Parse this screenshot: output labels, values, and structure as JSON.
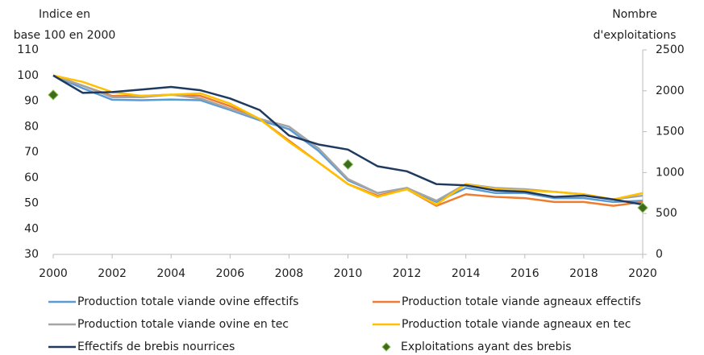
{
  "chart_data": {
    "type": "line",
    "ylabel": [
      "Indice en",
      "base 100 en 2000"
    ],
    "y2label": [
      "Nombre",
      "d'exploitations"
    ],
    "x": [
      2000,
      2001,
      2002,
      2003,
      2004,
      2005,
      2006,
      2007,
      2008,
      2009,
      2010,
      2011,
      2012,
      2013,
      2014,
      2015,
      2016,
      2017,
      2018,
      2019,
      2020
    ],
    "xlim": [
      2000,
      2020
    ],
    "xticks": [
      2000,
      2002,
      2004,
      2006,
      2008,
      2010,
      2012,
      2014,
      2016,
      2018,
      2020
    ],
    "ylim": [
      30,
      110
    ],
    "yticks": [
      30,
      40,
      50,
      60,
      70,
      80,
      90,
      100,
      110
    ],
    "y2lim": [
      0,
      2500
    ],
    "y2ticks": [
      0,
      500,
      1000,
      1500,
      2000,
      2500
    ],
    "grid": false,
    "series": [
      {
        "name": "Production totale viande ovine effectifs",
        "color": "#5b9bd5",
        "values": [
          100,
          95,
          90.5,
          90.3,
          90.6,
          90.3,
          86.5,
          82.5,
          79,
          70.5,
          59,
          54,
          56,
          50.5,
          56,
          54,
          54,
          52,
          52,
          50.5,
          51
        ]
      },
      {
        "name": "Production totale viande agneaux effectifs",
        "color": "#ed7d31",
        "values": [
          100,
          96,
          92,
          92,
          92.5,
          92,
          88,
          83,
          74.5,
          66,
          57.5,
          53,
          55.5,
          49,
          53.5,
          52.5,
          52,
          50.5,
          50.5,
          49,
          50.5
        ]
      },
      {
        "name": "Production totale viande ovine en tec",
        "color": "#a5a5a5",
        "values": [
          100,
          96,
          91.5,
          91.5,
          92.5,
          91,
          87,
          83,
          80,
          71.5,
          59.5,
          54,
          56,
          51,
          57.5,
          56,
          55.5,
          54.5,
          53.5,
          51.5,
          53
        ]
      },
      {
        "name": "Production totale viande agneaux en tec",
        "color": "#ffc000",
        "values": [
          100,
          97.5,
          93.5,
          92,
          92.5,
          93,
          89,
          83,
          74,
          66,
          57.5,
          52.5,
          55.5,
          49.5,
          57.5,
          55.5,
          55,
          54.5,
          53.5,
          51.5,
          54
        ]
      },
      {
        "name": "Effectifs de brebis nourrices",
        "color": "#1f3a5f",
        "values": [
          100,
          93.2,
          93.5,
          94.5,
          95.5,
          94.2,
          91,
          86.5,
          76.5,
          73,
          71,
          64.5,
          62.5,
          57.5,
          57,
          55,
          54.5,
          52.5,
          53,
          51.5,
          49.5
        ]
      },
      {
        "name": "Exploitations ayant des brebis",
        "color": "#3a6b1e",
        "axis": "y2",
        "marker": "diamond",
        "values": [
          1950,
          null,
          null,
          null,
          null,
          null,
          null,
          null,
          null,
          null,
          1100,
          null,
          null,
          null,
          null,
          null,
          null,
          null,
          null,
          null,
          570
        ]
      }
    ]
  }
}
